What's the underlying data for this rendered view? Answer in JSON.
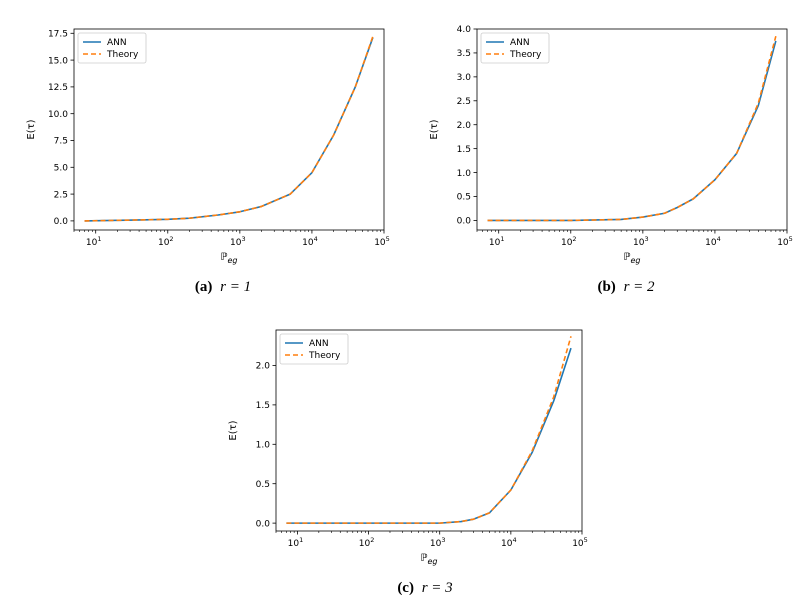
{
  "figure": {
    "panels": [
      {
        "label": "(a)",
        "caption": "r = 1"
      },
      {
        "label": "(b)",
        "caption": "r = 2"
      },
      {
        "label": "(c)",
        "caption": "r = 3"
      }
    ]
  },
  "colors": {
    "ann": "#1f77b4",
    "theory": "#ff7f0e"
  },
  "chart_data": [
    {
      "type": "line",
      "xlabel": "ℙeg",
      "ylabel": "E(τ)",
      "xscale": "log",
      "xlim": [
        5,
        100000
      ],
      "ylim": [
        -0.85,
        17.9
      ],
      "xticks": [
        "10^1",
        "10^2",
        "10^3",
        "10^4",
        "10^5"
      ],
      "yticks": [
        "0.0",
        "2.5",
        "5.0",
        "7.5",
        "10.0",
        "12.5",
        "15.0",
        "17.5"
      ],
      "legend": "top-left",
      "grid": false,
      "x": [
        7,
        20,
        50,
        100,
        200,
        500,
        1000,
        2000,
        5000,
        10000,
        20000,
        40000,
        70000
      ],
      "series": [
        {
          "name": "ANN",
          "values": [
            0.0,
            0.05,
            0.1,
            0.15,
            0.25,
            0.55,
            0.85,
            1.35,
            2.5,
            4.5,
            8.0,
            12.5,
            17.1
          ]
        },
        {
          "name": "Theory",
          "values": [
            0.0,
            0.05,
            0.1,
            0.15,
            0.25,
            0.55,
            0.85,
            1.35,
            2.5,
            4.5,
            8.0,
            12.5,
            17.2
          ]
        }
      ]
    },
    {
      "type": "line",
      "xlabel": "ℙeg",
      "ylabel": "E(τ)",
      "xscale": "log",
      "xlim": [
        5,
        100000
      ],
      "ylim": [
        -0.2,
        4.0
      ],
      "xticks": [
        "10^1",
        "10^2",
        "10^3",
        "10^4",
        "10^5"
      ],
      "yticks": [
        "0.0",
        "0.5",
        "1.0",
        "1.5",
        "2.0",
        "2.5",
        "3.0",
        "3.5",
        "4.0"
      ],
      "legend": "top-left",
      "grid": false,
      "x": [
        7,
        100,
        500,
        1000,
        2000,
        3000,
        5000,
        10000,
        20000,
        40000,
        70000
      ],
      "series": [
        {
          "name": "ANN",
          "values": [
            0.0,
            0.0,
            0.02,
            0.07,
            0.15,
            0.27,
            0.45,
            0.85,
            1.4,
            2.4,
            3.75
          ]
        },
        {
          "name": "Theory",
          "values": [
            0.0,
            0.0,
            0.02,
            0.07,
            0.15,
            0.27,
            0.45,
            0.85,
            1.4,
            2.45,
            3.85
          ]
        }
      ]
    },
    {
      "type": "line",
      "xlabel": "ℙeg",
      "ylabel": "E(τ)",
      "xscale": "log",
      "xlim": [
        5,
        100000
      ],
      "ylim": [
        -0.1,
        2.45
      ],
      "xticks": [
        "10^1",
        "10^2",
        "10^3",
        "10^4",
        "10^5"
      ],
      "yticks": [
        "0.0",
        "0.5",
        "1.0",
        "1.5",
        "2.0"
      ],
      "legend": "top-left",
      "grid": false,
      "x": [
        7,
        100,
        1000,
        2000,
        3000,
        5000,
        10000,
        20000,
        40000,
        70000
      ],
      "series": [
        {
          "name": "ANN",
          "values": [
            0.0,
            0.0,
            0.0,
            0.02,
            0.05,
            0.13,
            0.42,
            0.9,
            1.55,
            2.22
          ]
        },
        {
          "name": "Theory",
          "values": [
            0.0,
            0.0,
            0.0,
            0.02,
            0.05,
            0.13,
            0.42,
            0.92,
            1.6,
            2.37
          ]
        }
      ]
    }
  ]
}
